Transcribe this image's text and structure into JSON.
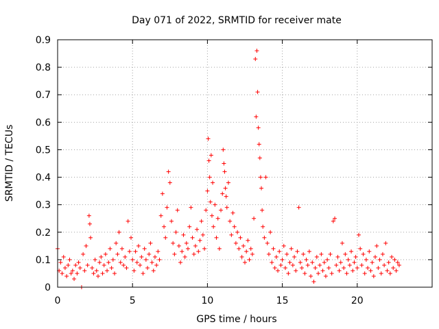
{
  "chart_data": {
    "type": "scatter",
    "title": "Day 071 of 2022, SRMTID for receiver mate",
    "xlabel": "GPS time / hours",
    "ylabel": "SRMTID / TECUs",
    "xlim": [
      0,
      25
    ],
    "ylim": [
      0,
      0.9
    ],
    "xticks": [
      0,
      5,
      10,
      15,
      20
    ],
    "yticks": [
      0,
      0.1,
      0.2,
      0.3,
      0.4,
      0.5,
      0.6,
      0.7,
      0.8,
      0.9
    ],
    "grid": true,
    "marker": "plus",
    "color": "#ff0000",
    "series": [
      {
        "name": "SRMTID",
        "points": [
          [
            0.0,
            0.14
          ],
          [
            0.1,
            0.06
          ],
          [
            0.2,
            0.09
          ],
          [
            0.3,
            0.05
          ],
          [
            0.4,
            0.11
          ],
          [
            0.5,
            0.07
          ],
          [
            0.6,
            0.04
          ],
          [
            0.7,
            0.08
          ],
          [
            0.8,
            0.1
          ],
          [
            0.9,
            0.05
          ],
          [
            1.0,
            0.06
          ],
          [
            1.1,
            0.03
          ],
          [
            1.2,
            0.08
          ],
          [
            1.3,
            0.05
          ],
          [
            1.4,
            0.09
          ],
          [
            1.5,
            0.07
          ],
          [
            1.6,
            0.0
          ],
          [
            1.7,
            0.12
          ],
          [
            1.8,
            0.06
          ],
          [
            1.9,
            0.15
          ],
          [
            2.0,
            0.08
          ],
          [
            2.1,
            0.26
          ],
          [
            2.15,
            0.23
          ],
          [
            2.2,
            0.18
          ],
          [
            2.3,
            0.07
          ],
          [
            2.4,
            0.05
          ],
          [
            2.5,
            0.1
          ],
          [
            2.6,
            0.06
          ],
          [
            2.7,
            0.04
          ],
          [
            2.8,
            0.09
          ],
          [
            2.9,
            0.11
          ],
          [
            3.0,
            0.05
          ],
          [
            3.1,
            0.08
          ],
          [
            3.2,
            0.12
          ],
          [
            3.3,
            0.06
          ],
          [
            3.4,
            0.09
          ],
          [
            3.5,
            0.14
          ],
          [
            3.6,
            0.07
          ],
          [
            3.7,
            0.1
          ],
          [
            3.8,
            0.05
          ],
          [
            3.9,
            0.16
          ],
          [
            4.0,
            0.12
          ],
          [
            4.1,
            0.2
          ],
          [
            4.2,
            0.09
          ],
          [
            4.3,
            0.14
          ],
          [
            4.4,
            0.08
          ],
          [
            4.5,
            0.11
          ],
          [
            4.6,
            0.07
          ],
          [
            4.7,
            0.24
          ],
          [
            4.8,
            0.13
          ],
          [
            4.9,
            0.18
          ],
          [
            5.0,
            0.1
          ],
          [
            5.1,
            0.06
          ],
          [
            5.2,
            0.13
          ],
          [
            5.3,
            0.09
          ],
          [
            5.4,
            0.15
          ],
          [
            5.5,
            0.08
          ],
          [
            5.6,
            0.11
          ],
          [
            5.7,
            0.05
          ],
          [
            5.8,
            0.14
          ],
          [
            5.9,
            0.1
          ],
          [
            6.0,
            0.07
          ],
          [
            6.1,
            0.12
          ],
          [
            6.2,
            0.16
          ],
          [
            6.3,
            0.09
          ],
          [
            6.4,
            0.06
          ],
          [
            6.5,
            0.11
          ],
          [
            6.6,
            0.08
          ],
          [
            6.7,
            0.13
          ],
          [
            6.8,
            0.1
          ],
          [
            6.9,
            0.26
          ],
          [
            7.0,
            0.34
          ],
          [
            7.1,
            0.22
          ],
          [
            7.2,
            0.18
          ],
          [
            7.3,
            0.29
          ],
          [
            7.4,
            0.42
          ],
          [
            7.5,
            0.38
          ],
          [
            7.6,
            0.24
          ],
          [
            7.7,
            0.16
          ],
          [
            7.8,
            0.12
          ],
          [
            7.9,
            0.2
          ],
          [
            8.0,
            0.28
          ],
          [
            8.1,
            0.15
          ],
          [
            8.2,
            0.09
          ],
          [
            8.3,
            0.13
          ],
          [
            8.4,
            0.19
          ],
          [
            8.5,
            0.11
          ],
          [
            8.6,
            0.16
          ],
          [
            8.7,
            0.14
          ],
          [
            8.8,
            0.22
          ],
          [
            8.9,
            0.29
          ],
          [
            9.0,
            0.18
          ],
          [
            9.1,
            0.12
          ],
          [
            9.2,
            0.15
          ],
          [
            9.3,
            0.21
          ],
          [
            9.4,
            0.13
          ],
          [
            9.5,
            0.17
          ],
          [
            9.6,
            0.24
          ],
          [
            9.7,
            0.19
          ],
          [
            9.8,
            0.14
          ],
          [
            9.9,
            0.28
          ],
          [
            10.0,
            0.35
          ],
          [
            10.05,
            0.54
          ],
          [
            10.1,
            0.46
          ],
          [
            10.15,
            0.4
          ],
          [
            10.2,
            0.31
          ],
          [
            10.25,
            0.48
          ],
          [
            10.3,
            0.26
          ],
          [
            10.35,
            0.38
          ],
          [
            10.4,
            0.22
          ],
          [
            10.5,
            0.3
          ],
          [
            10.6,
            0.18
          ],
          [
            10.7,
            0.25
          ],
          [
            10.8,
            0.14
          ],
          [
            10.9,
            0.28
          ],
          [
            11.0,
            0.34
          ],
          [
            11.05,
            0.5
          ],
          [
            11.1,
            0.45
          ],
          [
            11.15,
            0.42
          ],
          [
            11.2,
            0.36
          ],
          [
            11.25,
            0.33
          ],
          [
            11.3,
            0.29
          ],
          [
            11.4,
            0.38
          ],
          [
            11.5,
            0.24
          ],
          [
            11.6,
            0.19
          ],
          [
            11.7,
            0.27
          ],
          [
            11.8,
            0.22
          ],
          [
            11.9,
            0.16
          ],
          [
            12.0,
            0.2
          ],
          [
            12.1,
            0.14
          ],
          [
            12.2,
            0.18
          ],
          [
            12.3,
            0.11
          ],
          [
            12.4,
            0.15
          ],
          [
            12.5,
            0.09
          ],
          [
            12.6,
            0.13
          ],
          [
            12.7,
            0.17
          ],
          [
            12.8,
            0.1
          ],
          [
            12.9,
            0.14
          ],
          [
            13.0,
            0.12
          ],
          [
            13.1,
            0.25
          ],
          [
            13.2,
            0.83
          ],
          [
            13.25,
            0.62
          ],
          [
            13.3,
            0.86
          ],
          [
            13.35,
            0.71
          ],
          [
            13.4,
            0.58
          ],
          [
            13.45,
            0.52
          ],
          [
            13.5,
            0.47
          ],
          [
            13.55,
            0.4
          ],
          [
            13.6,
            0.36
          ],
          [
            13.65,
            0.28
          ],
          [
            13.7,
            0.22
          ],
          [
            13.8,
            0.18
          ],
          [
            13.9,
            0.4
          ],
          [
            14.0,
            0.16
          ],
          [
            14.1,
            0.12
          ],
          [
            14.2,
            0.2
          ],
          [
            14.3,
            0.09
          ],
          [
            14.4,
            0.14
          ],
          [
            14.5,
            0.07
          ],
          [
            14.6,
            0.11
          ],
          [
            14.7,
            0.06
          ],
          [
            14.8,
            0.13
          ],
          [
            14.9,
            0.08
          ],
          [
            15.0,
            0.1
          ],
          [
            15.1,
            0.15
          ],
          [
            15.2,
            0.07
          ],
          [
            15.3,
            0.12
          ],
          [
            15.4,
            0.05
          ],
          [
            15.5,
            0.09
          ],
          [
            15.6,
            0.14
          ],
          [
            15.7,
            0.08
          ],
          [
            15.8,
            0.11
          ],
          [
            15.9,
            0.06
          ],
          [
            16.0,
            0.13
          ],
          [
            16.1,
            0.29
          ],
          [
            16.2,
            0.09
          ],
          [
            16.3,
            0.07
          ],
          [
            16.4,
            0.12
          ],
          [
            16.5,
            0.05
          ],
          [
            16.6,
            0.1
          ],
          [
            16.7,
            0.08
          ],
          [
            16.8,
            0.13
          ],
          [
            16.9,
            0.04
          ],
          [
            17.0,
            0.09
          ],
          [
            17.1,
            0.02
          ],
          [
            17.2,
            0.07
          ],
          [
            17.3,
            0.11
          ],
          [
            17.4,
            0.05
          ],
          [
            17.5,
            0.08
          ],
          [
            17.6,
            0.12
          ],
          [
            17.7,
            0.06
          ],
          [
            17.8,
            0.09
          ],
          [
            17.9,
            0.04
          ],
          [
            18.0,
            0.1
          ],
          [
            18.1,
            0.07
          ],
          [
            18.2,
            0.12
          ],
          [
            18.3,
            0.05
          ],
          [
            18.4,
            0.24
          ],
          [
            18.5,
            0.25
          ],
          [
            18.6,
            0.08
          ],
          [
            18.7,
            0.11
          ],
          [
            18.8,
            0.06
          ],
          [
            18.9,
            0.09
          ],
          [
            19.0,
            0.16
          ],
          [
            19.1,
            0.07
          ],
          [
            19.2,
            0.12
          ],
          [
            19.3,
            0.05
          ],
          [
            19.4,
            0.1
          ],
          [
            19.5,
            0.08
          ],
          [
            19.6,
            0.13
          ],
          [
            19.7,
            0.06
          ],
          [
            19.8,
            0.09
          ],
          [
            19.9,
            0.11
          ],
          [
            20.0,
            0.07
          ],
          [
            20.1,
            0.19
          ],
          [
            20.2,
            0.14
          ],
          [
            20.3,
            0.08
          ],
          [
            20.4,
            0.12
          ],
          [
            20.5,
            0.05
          ],
          [
            20.6,
            0.1
          ],
          [
            20.7,
            0.07
          ],
          [
            20.8,
            0.13
          ],
          [
            20.9,
            0.06
          ],
          [
            21.0,
            0.09
          ],
          [
            21.1,
            0.04
          ],
          [
            21.2,
            0.11
          ],
          [
            21.3,
            0.15
          ],
          [
            21.4,
            0.07
          ],
          [
            21.5,
            0.1
          ],
          [
            21.6,
            0.05
          ],
          [
            21.7,
            0.12
          ],
          [
            21.8,
            0.08
          ],
          [
            21.9,
            0.16
          ],
          [
            22.0,
            0.06
          ],
          [
            22.1,
            0.09
          ],
          [
            22.2,
            0.05
          ],
          [
            22.3,
            0.11
          ],
          [
            22.4,
            0.07
          ],
          [
            22.5,
            0.1
          ],
          [
            22.6,
            0.06
          ],
          [
            22.7,
            0.09
          ],
          [
            22.8,
            0.08
          ]
        ]
      }
    ]
  }
}
